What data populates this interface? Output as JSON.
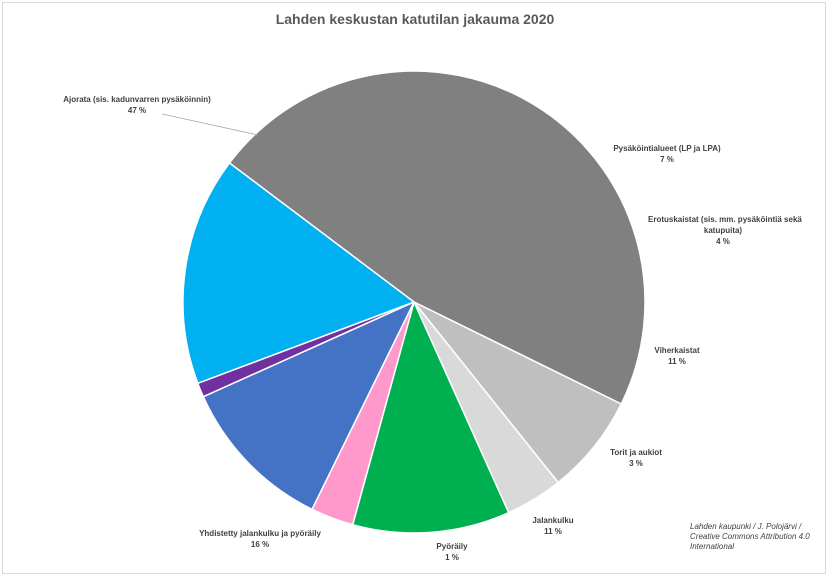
{
  "chart_data": {
    "type": "pie",
    "title": "Lahden keskustan katutilan jakauma 2020",
    "slices": [
      {
        "name": "Ajorata (sis. kadunvarren pysäköinnin)",
        "value": 47,
        "label": "47 %",
        "color": "#808080"
      },
      {
        "name": "Pysäköintialueet (LP ja LPA)",
        "value": 7,
        "label": "7 %",
        "color": "#bfbfbf"
      },
      {
        "name": "Erotuskaistat (sis. mm. pysäköintiä sekä katupuita)",
        "value": 4,
        "label": "4 %",
        "color": "#d9d9d9"
      },
      {
        "name": "Viherkaistat",
        "value": 11,
        "label": "11 %",
        "color": "#00b050"
      },
      {
        "name": "Torit ja aukiot",
        "value": 3,
        "label": "3 %",
        "color": "#ff99cc"
      },
      {
        "name": "Jalankulku",
        "value": 11,
        "label": "11 %",
        "color": "#4472c4"
      },
      {
        "name": "Pyöräily",
        "value": 1,
        "label": "1 %",
        "color": "#7030a0"
      },
      {
        "name": "Yhdistetty jalankulku ja pyöräily",
        "value": 16,
        "label": "16 %",
        "color": "#00b0f0"
      }
    ],
    "labels": {
      "ajorata": [
        "Ajorata (sis. kadunvarren pysäköinnin)",
        "47 %"
      ],
      "pysakointi": [
        "Pysäköintialueet (LP ja LPA)",
        "7 %"
      ],
      "erotus": [
        "Erotuskaistat (sis. mm. pysäköintiä sekä",
        "katupuita)",
        "4 %"
      ],
      "viher": [
        "Viherkaistat",
        "11 %"
      ],
      "torit": [
        "Torit ja aukiot",
        "3 %"
      ],
      "jalankulku": [
        "Jalankulku",
        "11 %"
      ],
      "pyoraily": [
        "Pyöräily",
        "1 %"
      ],
      "yhdistetty": [
        "Yhdistetty jalankulku ja pyöräily",
        "16 %"
      ]
    }
  },
  "credit": {
    "line1": "Lahden kaupunki / J. Polojärvi /",
    "line2": "Creative Commons Attribution 4.0",
    "line3": "International"
  }
}
